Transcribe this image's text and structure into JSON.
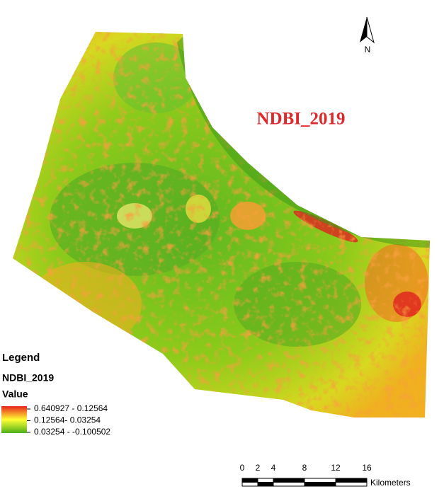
{
  "title": "NDBI_2019",
  "north_arrow": {
    "label": "N"
  },
  "legend": {
    "heading": "Legend",
    "layer": "NDBI_2019",
    "field": "Value",
    "classes": [
      "0.640927 - 0.12564",
      "0.12564- 0.03254",
      "0.03254 - -0.100502"
    ]
  },
  "scale_bar": {
    "ticks": [
      0,
      2,
      4,
      8,
      12,
      16
    ],
    "unit": "Kilometers"
  }
}
